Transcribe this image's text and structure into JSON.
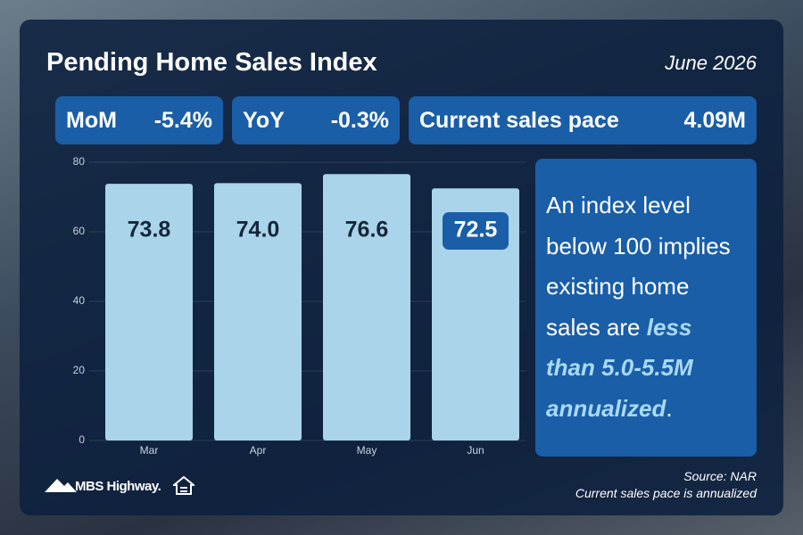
{
  "header": {
    "title": "Pending Home Sales Index",
    "date": "June 2026"
  },
  "stats": [
    {
      "label": "MoM",
      "value": "-5.4%"
    },
    {
      "label": "YoY",
      "value": "-0.3%"
    },
    {
      "label": "Current sales pace",
      "value": "4.09M"
    }
  ],
  "chart_data": {
    "type": "bar",
    "categories": [
      "Mar",
      "Apr",
      "May",
      "Jun"
    ],
    "values": [
      73.8,
      74.0,
      76.6,
      72.5
    ],
    "value_labels": [
      "73.8",
      "74.0",
      "76.6",
      "72.5"
    ],
    "color": "#a9d4ea",
    "ylim": [
      0,
      80
    ],
    "yticks": [
      0,
      20,
      40,
      60,
      80
    ],
    "grid": true
  },
  "note": {
    "parts": [
      {
        "text": "An index level below 100 implies existing home sales are "
      },
      {
        "text": "less than 5.0-5.5M annualized",
        "emphasis": true
      },
      {
        "text": "."
      }
    ]
  },
  "source": "Source: NAR",
  "footnote": "Current sales pace is annualized",
  "brand": "MBS Highway."
}
